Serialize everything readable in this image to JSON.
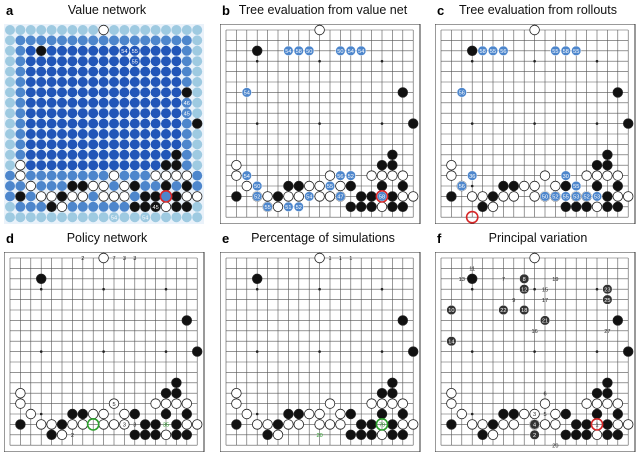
{
  "panels": [
    {
      "key": "a",
      "label": "a",
      "title": "Value network"
    },
    {
      "key": "b",
      "label": "b",
      "title": "Tree evaluation from value net"
    },
    {
      "key": "c",
      "label": "c",
      "title": "Tree evaluation from rollouts"
    },
    {
      "key": "d",
      "label": "d",
      "title": "Policy network"
    },
    {
      "key": "e",
      "label": "e",
      "title": "Percentage of simulations"
    },
    {
      "key": "f",
      "label": "f",
      "title": "Principal variation"
    }
  ],
  "board_size": 19,
  "colors": {
    "black": "#111111",
    "white": "#ffffff",
    "grid": "#555555",
    "highlight": "#d62728",
    "green": "#2ca02c",
    "blue_dark": "#2156b8",
    "blue_mid": "#4d86cc",
    "blue_light": "#9ecae1"
  },
  "stones": {
    "common_black": [
      [
        3,
        2
      ],
      [
        1,
        16
      ],
      [
        12,
        15
      ],
      [
        13,
        16
      ],
      [
        14,
        16
      ],
      [
        15,
        15
      ],
      [
        16,
        16
      ],
      [
        17,
        15
      ],
      [
        15,
        13
      ],
      [
        16,
        13
      ],
      [
        16,
        12
      ],
      [
        17,
        17
      ],
      [
        14,
        17
      ],
      [
        13,
        17
      ],
      [
        12,
        17
      ],
      [
        5,
        16
      ],
      [
        4,
        17
      ],
      [
        6,
        15
      ],
      [
        7,
        15
      ],
      [
        16,
        17
      ],
      [
        18,
        9
      ],
      [
        17,
        6
      ]
    ],
    "common_white": [
      [
        9,
        0
      ],
      [
        1,
        13
      ],
      [
        1,
        14
      ],
      [
        2,
        15
      ],
      [
        3,
        16
      ],
      [
        4,
        16
      ],
      [
        5,
        17
      ],
      [
        6,
        16
      ],
      [
        7,
        16
      ],
      [
        8,
        15
      ],
      [
        9,
        16
      ],
      [
        10,
        16
      ],
      [
        11,
        16
      ],
      [
        11,
        15
      ],
      [
        14,
        14
      ],
      [
        15,
        14
      ],
      [
        16,
        14
      ],
      [
        17,
        14
      ],
      [
        18,
        16
      ],
      [
        17,
        16
      ],
      [
        15,
        17
      ],
      [
        9,
        15
      ],
      [
        10,
        14
      ]
    ]
  },
  "value_labels_a": [
    "54",
    "55",
    "55",
    "46",
    "45",
    "51",
    "54",
    "54",
    "45"
  ],
  "value_labels_b": [
    "54",
    "58",
    "50",
    "50",
    "54",
    "54",
    "54",
    "54",
    "50",
    "52",
    "55",
    "51",
    "52",
    "54",
    "55",
    "56",
    "47",
    "52",
    "58"
  ],
  "value_labels_c": [
    "58",
    "55",
    "56",
    "55",
    "58",
    "55",
    "56",
    "56",
    "36",
    "30",
    "55",
    "53",
    "50",
    "52",
    "55",
    "52",
    "53"
  ],
  "move_labels_d": [
    "2",
    "7",
    "3",
    "3",
    "5",
    "3",
    "3",
    "35",
    "2"
  ],
  "move_labels_e": [
    "1",
    "1",
    "1",
    "20",
    "79"
  ],
  "move_labels_f": [
    "11",
    "13",
    "7",
    "8",
    "10",
    "12",
    "15",
    "19",
    "9",
    "22",
    "18",
    "17",
    "21",
    "16",
    "14",
    "27",
    "20",
    "23",
    "25",
    "6",
    "5",
    "4",
    "3",
    "2",
    "1"
  ]
}
